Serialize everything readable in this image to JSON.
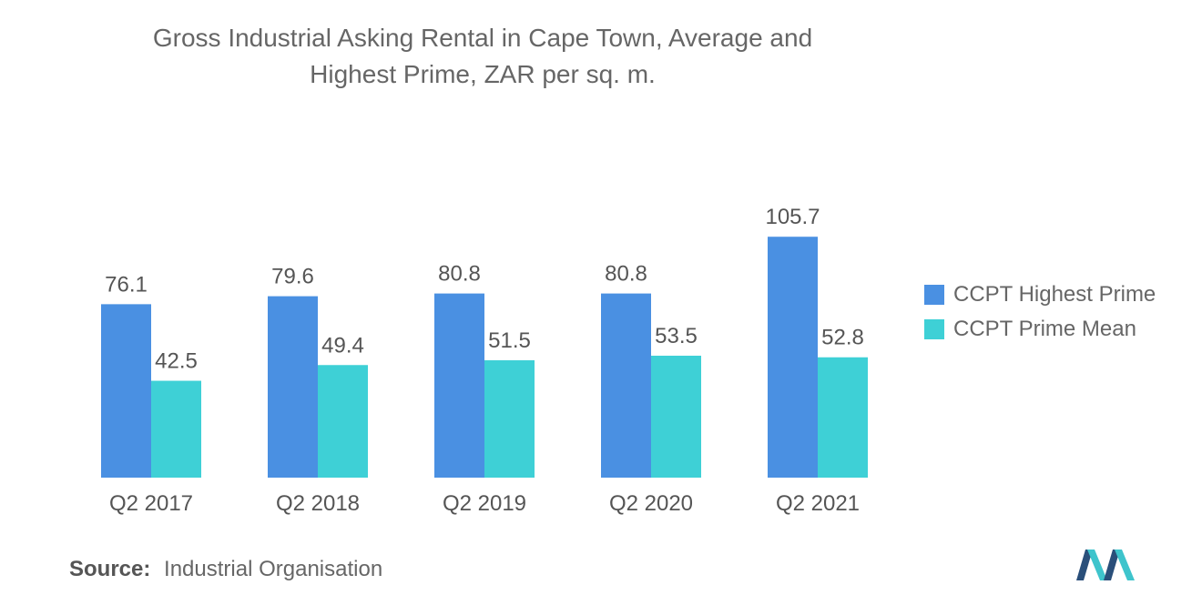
{
  "chart_data": {
    "type": "bar",
    "title": "Gross Industrial Asking Rental in Cape Town, Average and Highest Prime, ZAR per sq. m.",
    "title_lines": [
      "Gross Industrial Asking Rental in Cape Town, Average and",
      "Highest Prime, ZAR per sq. m."
    ],
    "categories": [
      "Q2 2017",
      "Q2 2018",
      "Q2 2019",
      "Q2 2020",
      "Q2 2021"
    ],
    "series": [
      {
        "name": "CCPT Highest Prime",
        "values": [
          76.1,
          79.6,
          80.8,
          80.8,
          105.7
        ],
        "labels": [
          "76.1",
          "79.6",
          "80.8",
          "80.8",
          "105.7"
        ],
        "color": "#4a90e2"
      },
      {
        "name": "CCPT Prime Mean",
        "values": [
          42.5,
          49.4,
          51.5,
          53.5,
          52.8
        ],
        "labels": [
          "42.5",
          "49.4",
          "51.5",
          "53.5",
          "52.8"
        ],
        "color": "#3ed0d6"
      }
    ],
    "ylim": [
      0,
      120
    ],
    "grid": false,
    "legend_position": "right"
  },
  "source": {
    "label": "Source:",
    "value": "Industrial Organisation"
  },
  "logo": {
    "icon": "mordor-logo-icon"
  }
}
